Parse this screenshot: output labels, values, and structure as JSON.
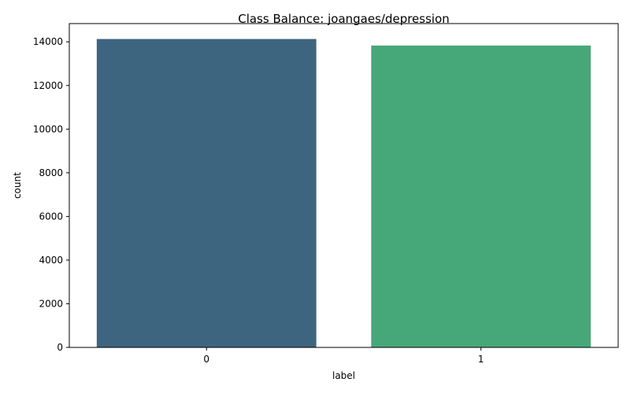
{
  "chart_data": {
    "type": "bar",
    "title": "Class Balance: joangaes/depression",
    "xlabel": "label",
    "ylabel": "count",
    "categories": [
      "0",
      "1"
    ],
    "values": [
      14130,
      13830
    ],
    "colors": [
      "#3e6580",
      "#46a878"
    ],
    "ylim": [
      0,
      14836
    ],
    "yticks": [
      0,
      2000,
      4000,
      6000,
      8000,
      10000,
      12000,
      14000
    ],
    "grid": false,
    "legend": "none"
  }
}
